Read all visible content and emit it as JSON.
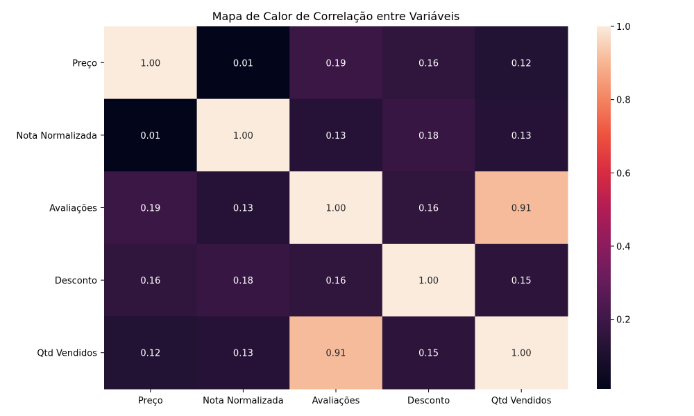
{
  "chart_data": {
    "type": "heatmap",
    "title": "Mapa de Calor de Correlação entre Variáveis",
    "xlabel": "",
    "ylabel": "",
    "rows": [
      "Preço",
      "Nota Normalizada",
      "Avaliações",
      "Desconto",
      "Qtd Vendidos"
    ],
    "columns": [
      "Preço",
      "Nota Normalizada",
      "Avaliações",
      "Desconto",
      "Qtd Vendidos"
    ],
    "values": [
      [
        1.0,
        0.01,
        0.19,
        0.16,
        0.12
      ],
      [
        0.01,
        1.0,
        0.13,
        0.18,
        0.13
      ],
      [
        0.19,
        0.13,
        1.0,
        0.16,
        0.91
      ],
      [
        0.16,
        0.18,
        0.16,
        1.0,
        0.15
      ],
      [
        0.12,
        0.13,
        0.91,
        0.15,
        1.0
      ]
    ],
    "value_format": "0.00",
    "colorbar": {
      "colormap": "rocket",
      "vmin": 0.01,
      "vmax": 1.0,
      "ticks": [
        0.2,
        0.4,
        0.6,
        0.8,
        1.0
      ],
      "tick_labels": [
        "0.2",
        "0.4",
        "0.6",
        "0.8",
        "1.0"
      ],
      "placement": "right"
    },
    "grid": false
  }
}
